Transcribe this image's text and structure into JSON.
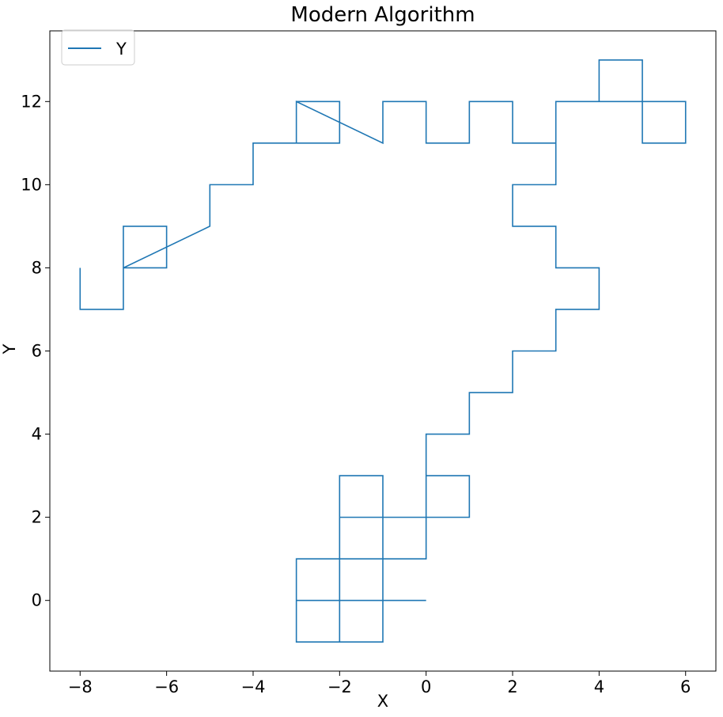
{
  "chart_data": {
    "type": "line",
    "title": "Modern Algorithm",
    "xlabel": "X",
    "ylabel": "Y",
    "xlim": [
      -8.7,
      6.7
    ],
    "ylim": [
      -1.7,
      13.7
    ],
    "xticks": [
      -8,
      -6,
      -4,
      -2,
      0,
      2,
      4,
      6
    ],
    "yticks": [
      0,
      2,
      4,
      6,
      8,
      10,
      12
    ],
    "xtick_labels": [
      "−8",
      "−6",
      "−4",
      "−2",
      "0",
      "2",
      "4",
      "6"
    ],
    "ytick_labels": [
      "0",
      "2",
      "4",
      "6",
      "8",
      "10",
      "12"
    ],
    "grid": false,
    "legend_position": "top-left",
    "series": [
      {
        "name": "Y",
        "color": "#1f77b4",
        "x": [
          -8,
          -8,
          -7,
          -7,
          -6,
          -6,
          -7,
          -7,
          -5,
          -5,
          -4,
          -4,
          -3,
          -3,
          -2,
          -2,
          -3,
          -3,
          -1,
          -1,
          0,
          0,
          1,
          1,
          2,
          2,
          3,
          3,
          4,
          4,
          5,
          5,
          6,
          6,
          5,
          5,
          3,
          3,
          2,
          2,
          3,
          3,
          4,
          4,
          3,
          3,
          2,
          2,
          1,
          1,
          0,
          0,
          1,
          1,
          0,
          0,
          -1,
          -1,
          -3,
          -3,
          -1,
          -1,
          -2,
          -2,
          -3,
          -3,
          -2,
          -2,
          0,
          0,
          -1,
          -1,
          -2,
          -2,
          -1,
          -1,
          0
        ],
        "y": [
          8,
          7,
          7,
          8,
          8,
          9,
          9,
          8,
          9,
          10,
          10,
          11,
          11,
          12,
          12,
          11,
          11,
          12,
          11,
          12,
          12,
          11,
          11,
          12,
          12,
          11,
          11,
          12,
          12,
          13,
          13,
          12,
          12,
          11,
          11,
          12,
          12,
          10,
          10,
          9,
          9,
          8,
          8,
          7,
          7,
          6,
          6,
          5,
          5,
          4,
          4,
          2,
          2,
          3,
          3,
          2,
          2,
          0,
          0,
          1,
          1,
          -1,
          -1,
          0,
          0,
          -1,
          -1,
          2,
          2,
          1,
          1,
          3,
          3,
          2,
          2,
          0,
          0
        ]
      }
    ]
  }
}
